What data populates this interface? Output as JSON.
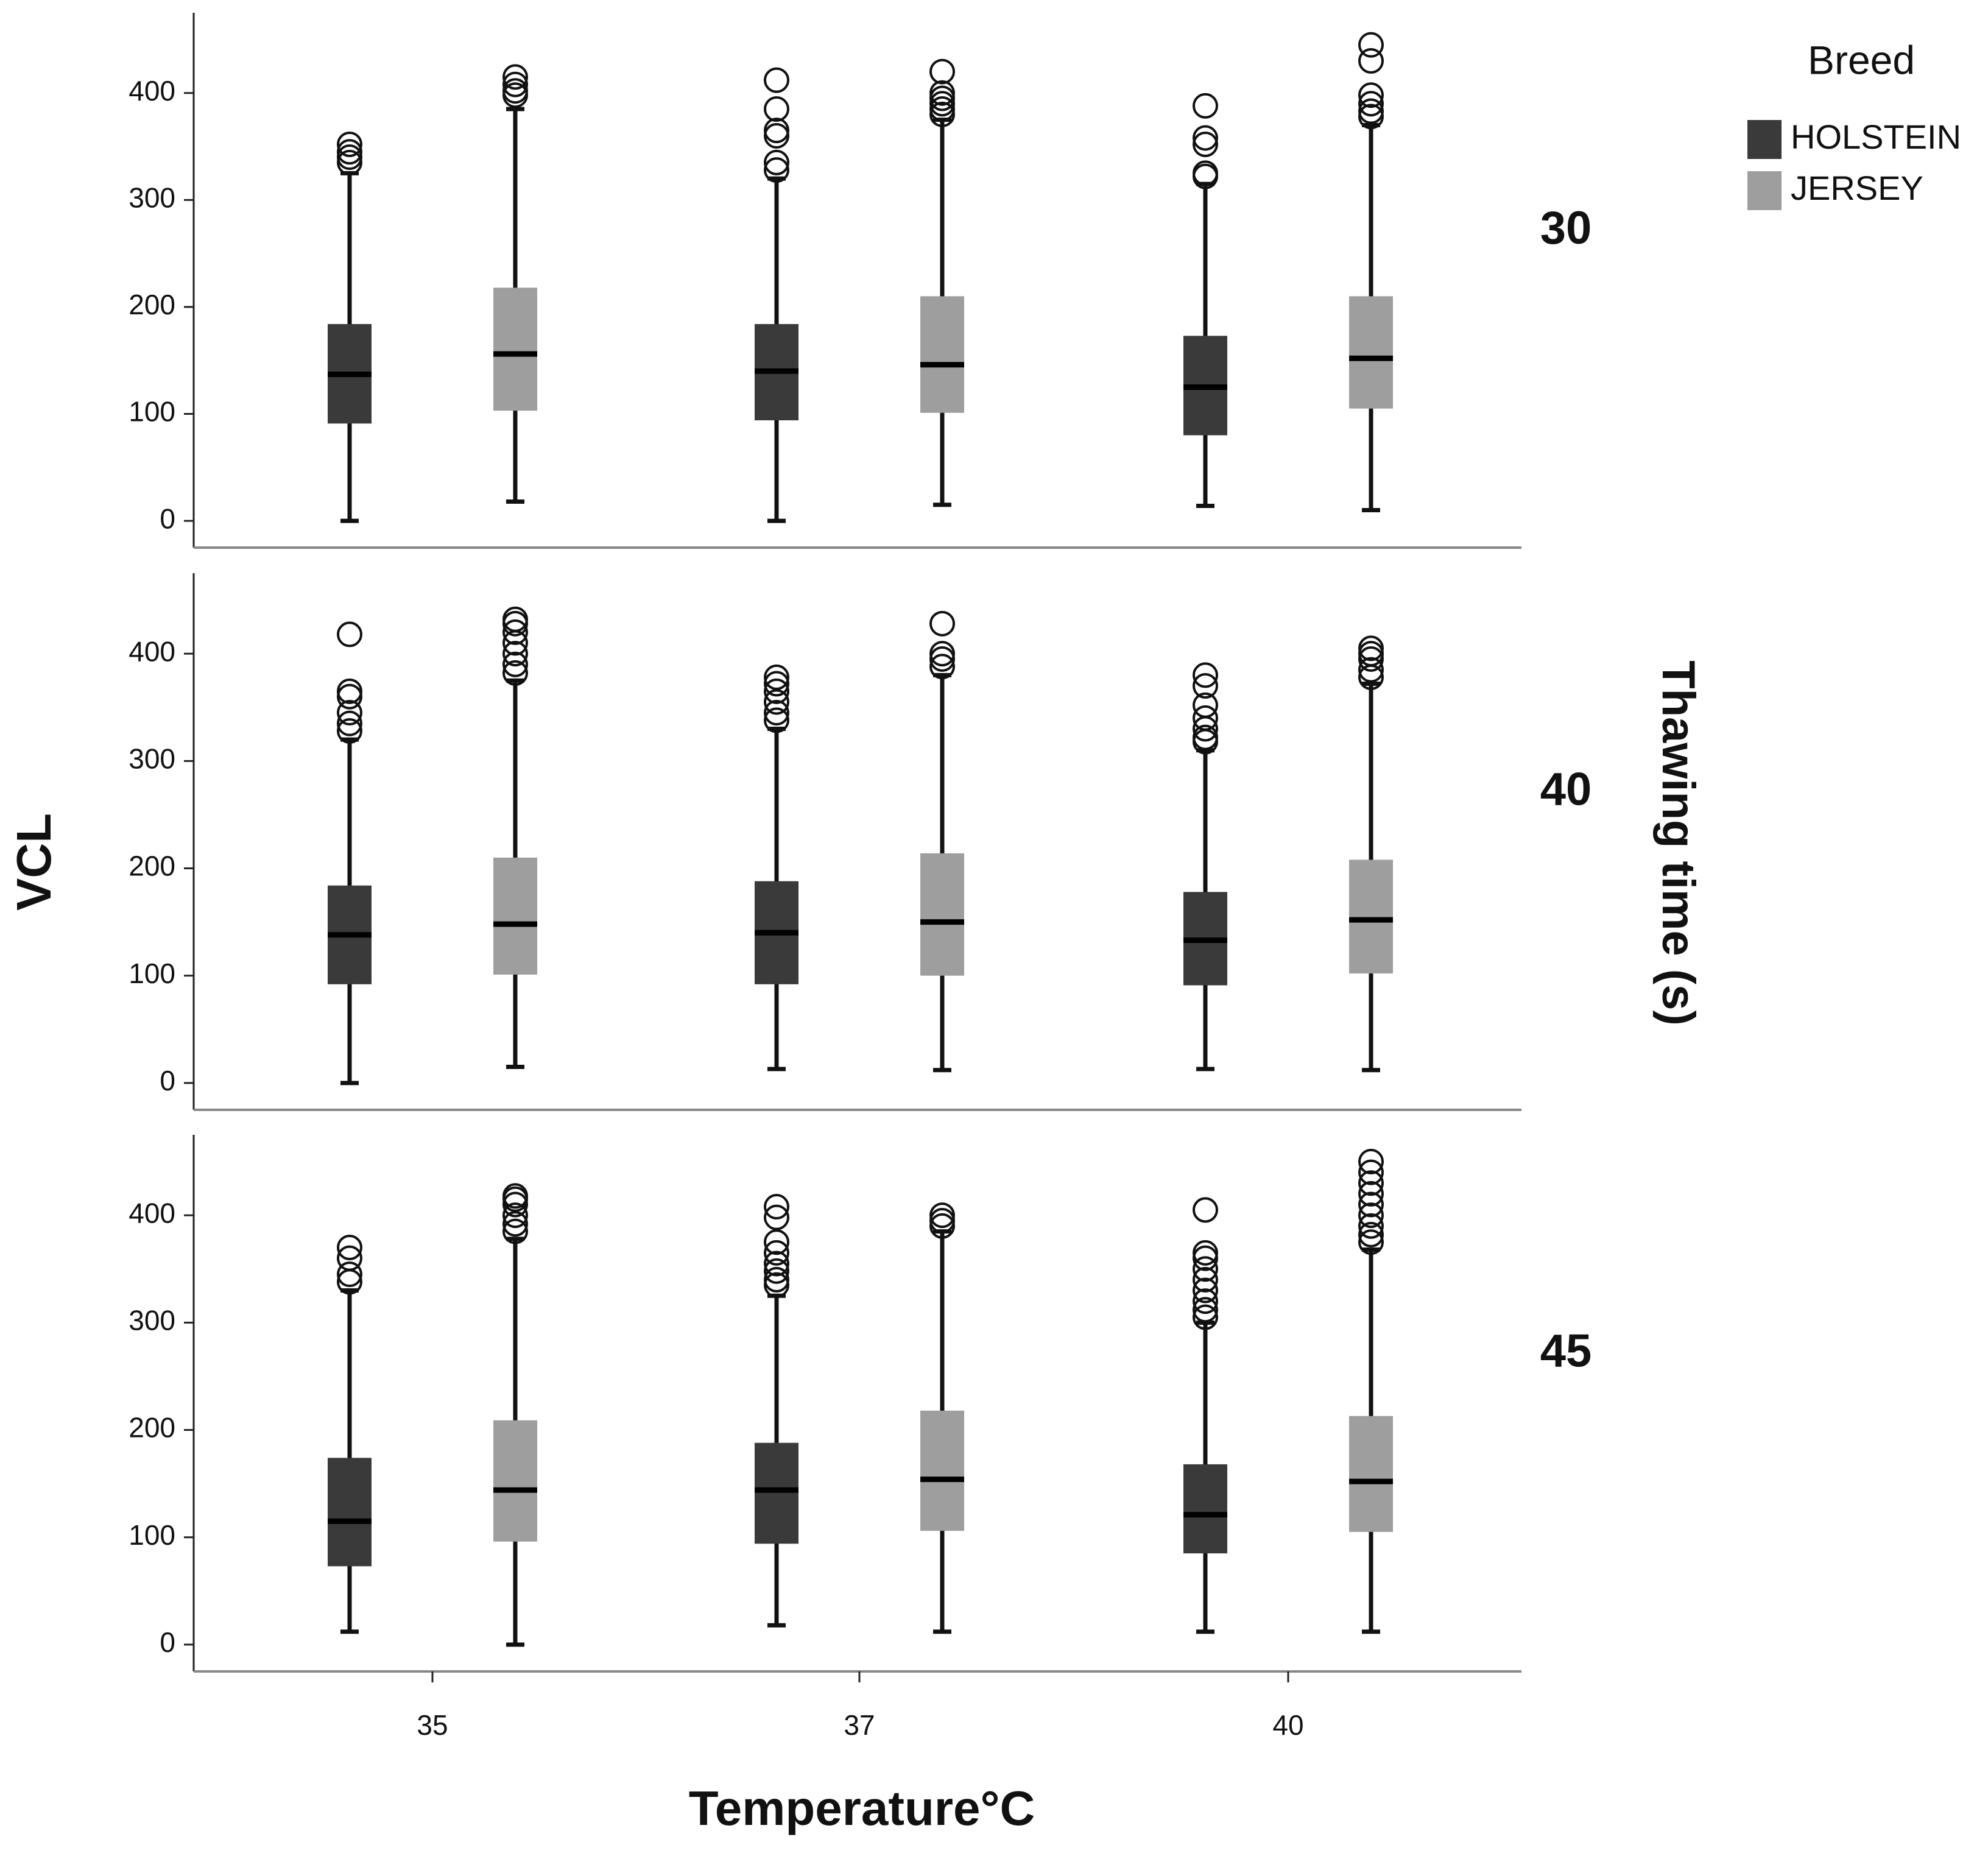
{
  "chart_data": {
    "type": "box",
    "y_label": "VCL",
    "x_label": "Temperature°C",
    "facet_label": "Thawing time (s)",
    "legend_title": "Breed",
    "categories": [
      "35",
      "37",
      "40"
    ],
    "ylim": [
      -25,
      475
    ],
    "yticks": [
      0,
      100,
      200,
      300,
      400
    ],
    "series": [
      {
        "name": "HOLSTEIN",
        "color": "#3a3a3a"
      },
      {
        "name": "JERSEY",
        "color": "#9e9e9e"
      }
    ],
    "panels": [
      {
        "label": "30",
        "series": [
          {
            "values": [
              {
                "min": 0,
                "q1": 91,
                "median": 137,
                "q3": 184,
                "max": 325,
                "outliers": [
                  335,
                  340,
                  345,
                  352
                ]
              },
              {
                "min": 0,
                "q1": 94,
                "median": 140,
                "q3": 184,
                "max": 320,
                "outliers": [
                  328,
                  335,
                  360,
                  365,
                  385,
                  412
                ]
              },
              {
                "min": 14,
                "q1": 80,
                "median": 125,
                "q3": 173,
                "max": 315,
                "outliers": [
                  322,
                  325,
                  352,
                  358,
                  388
                ]
              }
            ]
          },
          {
            "values": [
              {
                "min": 18,
                "q1": 103,
                "median": 156,
                "q3": 218,
                "max": 385,
                "outliers": [
                  398,
                  402,
                  408,
                  415
                ]
              },
              {
                "min": 15,
                "q1": 101,
                "median": 146,
                "q3": 210,
                "max": 375,
                "outliers": [
                  380,
                  385,
                  390,
                  395,
                  400,
                  420
                ]
              },
              {
                "min": 10,
                "q1": 105,
                "median": 152,
                "q3": 210,
                "max": 370,
                "outliers": [
                  378,
                  383,
                  390,
                  398,
                  430,
                  445
                ]
              }
            ]
          }
        ]
      },
      {
        "label": "40",
        "series": [
          {
            "values": [
              {
                "min": 0,
                "q1": 92,
                "median": 138,
                "q3": 184,
                "max": 320,
                "outliers": [
                  328,
                  335,
                  345,
                  360,
                  365,
                  418
                ]
              },
              {
                "min": 13,
                "q1": 92,
                "median": 140,
                "q3": 188,
                "max": 330,
                "outliers": [
                  338,
                  345,
                  355,
                  365,
                  372,
                  378
                ]
              },
              {
                "min": 13,
                "q1": 91,
                "median": 133,
                "q3": 178,
                "max": 310,
                "outliers": [
                  318,
                  322,
                  330,
                  340,
                  352,
                  370,
                  380
                ]
              }
            ]
          },
          {
            "values": [
              {
                "min": 15,
                "q1": 101,
                "median": 148,
                "q3": 210,
                "max": 375,
                "outliers": [
                  382,
                  390,
                  400,
                  410,
                  420,
                  428,
                  432
                ]
              },
              {
                "min": 12,
                "q1": 100,
                "median": 150,
                "q3": 214,
                "max": 380,
                "outliers": [
                  388,
                  395,
                  400,
                  428
                ]
              },
              {
                "min": 12,
                "q1": 102,
                "median": 152,
                "q3": 208,
                "max": 372,
                "outliers": [
                  378,
                  385,
                  395,
                  400,
                  405
                ]
              }
            ]
          }
        ]
      },
      {
        "label": "45",
        "series": [
          {
            "values": [
              {
                "min": 12,
                "q1": 73,
                "median": 115,
                "q3": 174,
                "max": 330,
                "outliers": [
                  338,
                  345,
                  360,
                  370
                ]
              },
              {
                "min": 18,
                "q1": 94,
                "median": 144,
                "q3": 188,
                "max": 325,
                "outliers": [
                  335,
                  340,
                  348,
                  355,
                  365,
                  375,
                  398,
                  408
                ]
              },
              {
                "min": 12,
                "q1": 85,
                "median": 121,
                "q3": 168,
                "max": 300,
                "outliers": [
                  305,
                  312,
                  320,
                  330,
                  340,
                  350,
                  360,
                  365,
                  405
                ]
              }
            ]
          },
          {
            "values": [
              {
                "min": 0,
                "q1": 96,
                "median": 144,
                "q3": 209,
                "max": 378,
                "outliers": [
                  385,
                  392,
                  400,
                  410,
                  415,
                  418
                ]
              },
              {
                "min": 12,
                "q1": 106,
                "median": 154,
                "q3": 218,
                "max": 385,
                "outliers": [
                  390,
                  395,
                  400
                ]
              },
              {
                "min": 12,
                "q1": 105,
                "median": 152,
                "q3": 213,
                "max": 368,
                "outliers": [
                  375,
                  382,
                  390,
                  400,
                  410,
                  420,
                  430,
                  440,
                  450
                ]
              }
            ]
          }
        ]
      }
    ]
  }
}
